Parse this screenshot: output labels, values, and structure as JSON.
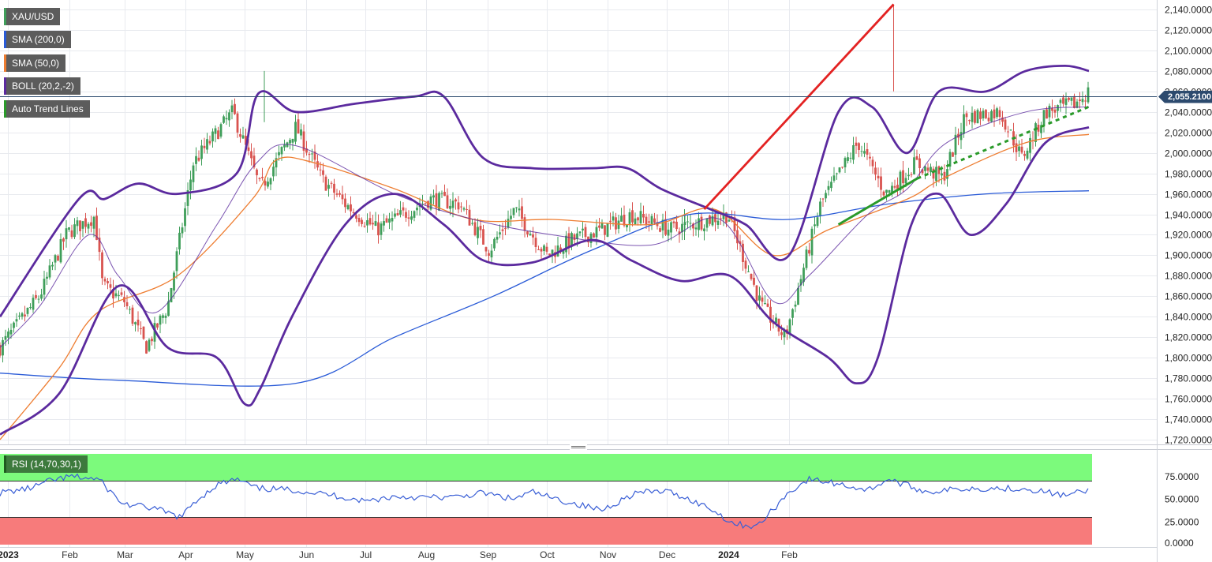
{
  "legend": {
    "symbol": "XAU/USD",
    "sma200": "SMA (200,0)",
    "sma50": "SMA (50,0)",
    "boll": "BOLL (20,2,-2)",
    "trend": "Auto Trend Lines",
    "rsi": "RSI (14,70,30,1)"
  },
  "current_price_label": "2,055.2100",
  "colors": {
    "bull": "#3f9e5a",
    "bear": "#d9534f",
    "sma200": "#2a5bd7",
    "sma50": "#ee7d31",
    "boll": "#5b2a9e",
    "trend_red": "#e32222",
    "trend_green": "#2a9a2a",
    "rsi_line": "#3a5fd6",
    "rsi_overbought": "#7cfa7c",
    "rsi_oversold": "#f77b7b"
  },
  "chart_data": [
    {
      "type": "candlestick",
      "x_axis": {
        "months": [
          "2023",
          "Feb",
          "Mar",
          "Apr",
          "May",
          "Jun",
          "Jul",
          "Aug",
          "Sep",
          "Oct",
          "Nov",
          "Dec",
          "2024",
          "Feb"
        ]
      },
      "y_ticks": [
        "2,140.0000",
        "2,120.0000",
        "2,100.0000",
        "2,080.0000",
        "2,060.0000",
        "2,040.0000",
        "2,020.0000",
        "2,000.0000",
        "1,980.0000",
        "1,960.0000",
        "1,940.0000",
        "1,920.0000",
        "1,900.0000",
        "1,880.0000",
        "1,860.0000",
        "1,840.0000",
        "1,820.0000",
        "1,800.0000",
        "1,780.0000",
        "1,760.0000",
        "1,740.0000",
        "1,720.0000"
      ],
      "ylim": [
        1720,
        2140
      ],
      "current_price": 2055.21,
      "close_path": [
        [
          0,
          1810
        ],
        [
          20,
          1860
        ],
        [
          34,
          1922
        ],
        [
          48,
          1938
        ],
        [
          52,
          1870
        ],
        [
          63,
          1855
        ],
        [
          74,
          1810
        ],
        [
          85,
          1850
        ],
        [
          98,
          1990
        ],
        [
          118,
          2040
        ],
        [
          132,
          1965
        ],
        [
          150,
          2025
        ],
        [
          163,
          1975
        ],
        [
          175,
          1950
        ],
        [
          191,
          1925
        ],
        [
          218,
          1955
        ],
        [
          233,
          1950
        ],
        [
          248,
          1905
        ],
        [
          261,
          1945
        ],
        [
          277,
          1900
        ],
        [
          290,
          1915
        ],
        [
          305,
          1925
        ],
        [
          320,
          1940
        ],
        [
          340,
          1925
        ],
        [
          369,
          1940
        ],
        [
          386,
          1850
        ],
        [
          398,
          1820
        ],
        [
          416,
          1950
        ],
        [
          435,
          2010
        ],
        [
          449,
          1960
        ],
        [
          464,
          1990
        ],
        [
          478,
          1975
        ],
        [
          489,
          2035
        ],
        [
          507,
          2040
        ],
        [
          518,
          1995
        ],
        [
          530,
          2040
        ],
        [
          545,
          2048
        ],
        [
          552,
          2060
        ]
      ],
      "sma200": [
        [
          0,
          1785
        ],
        [
          60,
          1778
        ],
        [
          150,
          1775
        ],
        [
          200,
          1820
        ],
        [
          250,
          1860
        ],
        [
          300,
          1905
        ],
        [
          350,
          1940
        ],
        [
          400,
          1935
        ],
        [
          450,
          1950
        ],
        [
          500,
          1960
        ],
        [
          552,
          1963
        ]
      ],
      "sma50": [
        [
          0,
          1720
        ],
        [
          30,
          1790
        ],
        [
          50,
          1845
        ],
        [
          90,
          1880
        ],
        [
          128,
          1955
        ],
        [
          140,
          1993
        ],
        [
          160,
          1990
        ],
        [
          200,
          1965
        ],
        [
          240,
          1935
        ],
        [
          280,
          1935
        ],
        [
          330,
          1930
        ],
        [
          362,
          1945
        ],
        [
          392,
          1900
        ],
        [
          420,
          1925
        ],
        [
          460,
          1955
        ],
        [
          478,
          1975
        ],
        [
          520,
          2010
        ],
        [
          552,
          2018
        ]
      ],
      "boll_mid": [
        [
          0,
          1810
        ],
        [
          20,
          1850
        ],
        [
          45,
          1920
        ],
        [
          60,
          1880
        ],
        [
          80,
          1845
        ],
        [
          110,
          1930
        ],
        [
          130,
          1990
        ],
        [
          150,
          2007
        ],
        [
          200,
          1960
        ],
        [
          240,
          1935
        ],
        [
          280,
          1920
        ],
        [
          330,
          1910
        ],
        [
          365,
          1935
        ],
        [
          392,
          1855
        ],
        [
          410,
          1880
        ],
        [
          440,
          1940
        ],
        [
          460,
          1965
        ],
        [
          480,
          2010
        ],
        [
          520,
          2040
        ],
        [
          552,
          2045
        ]
      ],
      "boll_upper": [
        [
          0,
          1840
        ],
        [
          40,
          1955
        ],
        [
          53,
          1955
        ],
        [
          70,
          1970
        ],
        [
          90,
          1960
        ],
        [
          120,
          1980
        ],
        [
          131,
          2058
        ],
        [
          150,
          2040
        ],
        [
          180,
          2048
        ],
        [
          210,
          2055
        ],
        [
          225,
          2055
        ],
        [
          245,
          1995
        ],
        [
          270,
          1985
        ],
        [
          300,
          1985
        ],
        [
          318,
          1985
        ],
        [
          335,
          1965
        ],
        [
          360,
          1945
        ],
        [
          378,
          1930
        ],
        [
          400,
          1900
        ],
        [
          425,
          2040
        ],
        [
          442,
          2045
        ],
        [
          460,
          2000
        ],
        [
          476,
          2060
        ],
        [
          500,
          2060
        ],
        [
          520,
          2080
        ],
        [
          540,
          2085
        ],
        [
          552,
          2080
        ]
      ],
      "boll_lower": [
        [
          0,
          1725
        ],
        [
          30,
          1765
        ],
        [
          60,
          1870
        ],
        [
          85,
          1810
        ],
        [
          110,
          1800
        ],
        [
          124,
          1755
        ],
        [
          132,
          1770
        ],
        [
          148,
          1840
        ],
        [
          175,
          1930
        ],
        [
          200,
          1960
        ],
        [
          225,
          1930
        ],
        [
          245,
          1895
        ],
        [
          270,
          1893
        ],
        [
          300,
          1915
        ],
        [
          320,
          1895
        ],
        [
          345,
          1875
        ],
        [
          370,
          1880
        ],
        [
          392,
          1835
        ],
        [
          420,
          1800
        ],
        [
          434,
          1775
        ],
        [
          445,
          1800
        ],
        [
          462,
          1930
        ],
        [
          476,
          1960
        ],
        [
          492,
          1920
        ],
        [
          510,
          1950
        ],
        [
          530,
          2010
        ],
        [
          552,
          2025
        ]
      ],
      "trend_red": [
        [
          357,
          1945
        ],
        [
          453,
          2145
        ]
      ],
      "trend_green_solid": [
        [
          425,
          1930
        ],
        [
          465,
          1975
        ]
      ],
      "trend_green_dashed": [
        [
          465,
          1975
        ],
        [
          552,
          2045
        ]
      ]
    },
    {
      "type": "line",
      "name": "RSI",
      "y_ticks": [
        "75.0000",
        "50.0000",
        "25.0000",
        "0.0000"
      ],
      "ylim": [
        0,
        100
      ],
      "overbought": 70,
      "oversold": 30,
      "series": [
        [
          0,
          57
        ],
        [
          15,
          62
        ],
        [
          25,
          70
        ],
        [
          36,
          75
        ],
        [
          50,
          72
        ],
        [
          62,
          45
        ],
        [
          78,
          40
        ],
        [
          92,
          30
        ],
        [
          98,
          46
        ],
        [
          110,
          66
        ],
        [
          120,
          72
        ],
        [
          130,
          62
        ],
        [
          150,
          60
        ],
        [
          170,
          54
        ],
        [
          185,
          48
        ],
        [
          200,
          53
        ],
        [
          215,
          52
        ],
        [
          230,
          52
        ],
        [
          245,
          57
        ],
        [
          260,
          50
        ],
        [
          270,
          58
        ],
        [
          280,
          51
        ],
        [
          305,
          38
        ],
        [
          322,
          57
        ],
        [
          337,
          59
        ],
        [
          345,
          54
        ],
        [
          360,
          40
        ],
        [
          372,
          23
        ],
        [
          384,
          20
        ],
        [
          400,
          58
        ],
        [
          410,
          72
        ],
        [
          425,
          67
        ],
        [
          440,
          60
        ],
        [
          450,
          72
        ],
        [
          470,
          58
        ],
        [
          490,
          62
        ],
        [
          520,
          62
        ],
        [
          540,
          54
        ],
        [
          552,
          60
        ]
      ]
    }
  ]
}
